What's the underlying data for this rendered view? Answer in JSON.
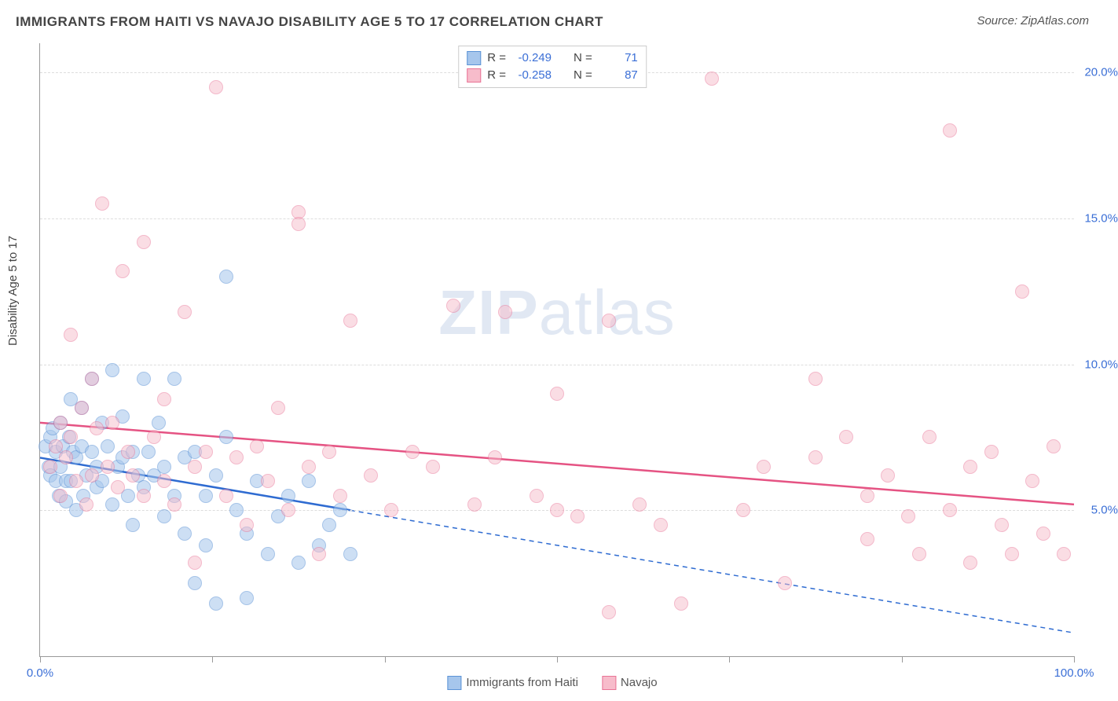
{
  "title": "IMMIGRANTS FROM HAITI VS NAVAJO DISABILITY AGE 5 TO 17 CORRELATION CHART",
  "source": "Source: ZipAtlas.com",
  "ylabel": "Disability Age 5 to 17",
  "watermark_bold": "ZIP",
  "watermark_rest": "atlas",
  "chart": {
    "type": "scatter",
    "background_color": "#ffffff",
    "grid_color": "#dddddd",
    "axis_color": "#999999",
    "xlim": [
      0,
      100
    ],
    "ylim": [
      0,
      21
    ],
    "xtick_positions": [
      0,
      16.67,
      33.33,
      50,
      66.67,
      83.33,
      100
    ],
    "xtick_labels": {
      "0": "0.0%",
      "100": "100.0%"
    },
    "ytick_positions": [
      5,
      10,
      15,
      20
    ],
    "ytick_labels": [
      "5.0%",
      "10.0%",
      "15.0%",
      "20.0%"
    ],
    "marker_radius": 9,
    "marker_border_width": 1.5,
    "series": [
      {
        "name": "Immigrants from Haiti",
        "fill_color": "#a6c6ec",
        "fill_opacity": 0.55,
        "border_color": "#5c93d6",
        "R": "-0.249",
        "N": "71",
        "trend": {
          "x1": 0,
          "y1": 6.8,
          "x2": 30,
          "y2": 5.0,
          "x2_ext": 100,
          "y2_ext": 0.8,
          "color": "#2e6bd1",
          "width": 2.5
        },
        "points": [
          [
            0.5,
            7.2
          ],
          [
            0.8,
            6.5
          ],
          [
            1,
            7.5
          ],
          [
            1,
            6.2
          ],
          [
            1.2,
            7.8
          ],
          [
            1.5,
            6.0
          ],
          [
            1.5,
            7.0
          ],
          [
            1.8,
            5.5
          ],
          [
            2,
            6.5
          ],
          [
            2,
            8.0
          ],
          [
            2.2,
            7.2
          ],
          [
            2.5,
            6.0
          ],
          [
            2.5,
            5.3
          ],
          [
            2.8,
            7.5
          ],
          [
            3,
            8.8
          ],
          [
            3,
            6.0
          ],
          [
            3.2,
            7.0
          ],
          [
            3.5,
            5.0
          ],
          [
            3.5,
            6.8
          ],
          [
            4,
            7.2
          ],
          [
            4,
            8.5
          ],
          [
            4.2,
            5.5
          ],
          [
            4.5,
            6.2
          ],
          [
            5,
            9.5
          ],
          [
            5,
            7.0
          ],
          [
            5.5,
            6.5
          ],
          [
            5.5,
            5.8
          ],
          [
            6,
            8.0
          ],
          [
            6,
            6.0
          ],
          [
            6.5,
            7.2
          ],
          [
            7,
            9.8
          ],
          [
            7,
            5.2
          ],
          [
            7.5,
            6.5
          ],
          [
            8,
            6.8
          ],
          [
            8,
            8.2
          ],
          [
            8.5,
            5.5
          ],
          [
            9,
            7.0
          ],
          [
            9,
            4.5
          ],
          [
            9.5,
            6.2
          ],
          [
            10,
            9.5
          ],
          [
            10,
            5.8
          ],
          [
            10.5,
            7.0
          ],
          [
            11,
            6.2
          ],
          [
            11.5,
            8.0
          ],
          [
            12,
            6.5
          ],
          [
            12,
            4.8
          ],
          [
            13,
            9.5
          ],
          [
            13,
            5.5
          ],
          [
            14,
            6.8
          ],
          [
            14,
            4.2
          ],
          [
            15,
            7.0
          ],
          [
            15,
            2.5
          ],
          [
            16,
            5.5
          ],
          [
            16,
            3.8
          ],
          [
            17,
            6.2
          ],
          [
            17,
            1.8
          ],
          [
            18,
            7.5
          ],
          [
            18,
            13.0
          ],
          [
            19,
            5.0
          ],
          [
            20,
            4.2
          ],
          [
            20,
            2.0
          ],
          [
            21,
            6.0
          ],
          [
            22,
            3.5
          ],
          [
            23,
            4.8
          ],
          [
            24,
            5.5
          ],
          [
            25,
            3.2
          ],
          [
            26,
            6.0
          ],
          [
            27,
            3.8
          ],
          [
            28,
            4.5
          ],
          [
            29,
            5.0
          ],
          [
            30,
            3.5
          ]
        ]
      },
      {
        "name": "Navajo",
        "fill_color": "#f7bccb",
        "fill_opacity": 0.5,
        "border_color": "#e97496",
        "R": "-0.258",
        "N": "87",
        "trend": {
          "x1": 0,
          "y1": 8.0,
          "x2": 100,
          "y2": 5.2,
          "color": "#e55383",
          "width": 2.5
        },
        "points": [
          [
            1,
            6.5
          ],
          [
            1.5,
            7.2
          ],
          [
            2,
            8.0
          ],
          [
            2,
            5.5
          ],
          [
            2.5,
            6.8
          ],
          [
            3,
            11.0
          ],
          [
            3,
            7.5
          ],
          [
            3.5,
            6.0
          ],
          [
            4,
            8.5
          ],
          [
            4.5,
            5.2
          ],
          [
            5,
            9.5
          ],
          [
            5,
            6.2
          ],
          [
            5.5,
            7.8
          ],
          [
            6,
            15.5
          ],
          [
            6.5,
            6.5
          ],
          [
            7,
            8.0
          ],
          [
            7.5,
            5.8
          ],
          [
            8,
            13.2
          ],
          [
            8.5,
            7.0
          ],
          [
            9,
            6.2
          ],
          [
            10,
            14.2
          ],
          [
            10,
            5.5
          ],
          [
            11,
            7.5
          ],
          [
            12,
            6.0
          ],
          [
            12,
            8.8
          ],
          [
            13,
            5.2
          ],
          [
            14,
            11.8
          ],
          [
            15,
            6.5
          ],
          [
            15,
            3.2
          ],
          [
            16,
            7.0
          ],
          [
            17,
            19.5
          ],
          [
            18,
            5.5
          ],
          [
            19,
            6.8
          ],
          [
            20,
            4.5
          ],
          [
            21,
            7.2
          ],
          [
            22,
            6.0
          ],
          [
            23,
            8.5
          ],
          [
            24,
            5.0
          ],
          [
            25,
            15.2
          ],
          [
            25,
            14.8
          ],
          [
            26,
            6.5
          ],
          [
            27,
            3.5
          ],
          [
            28,
            7.0
          ],
          [
            29,
            5.5
          ],
          [
            30,
            11.5
          ],
          [
            32,
            6.2
          ],
          [
            34,
            5.0
          ],
          [
            36,
            7.0
          ],
          [
            38,
            6.5
          ],
          [
            40,
            12.0
          ],
          [
            42,
            5.2
          ],
          [
            44,
            6.8
          ],
          [
            45,
            11.8
          ],
          [
            48,
            5.5
          ],
          [
            50,
            9.0
          ],
          [
            50,
            5.0
          ],
          [
            52,
            4.8
          ],
          [
            55,
            11.5
          ],
          [
            55,
            1.5
          ],
          [
            58,
            5.2
          ],
          [
            60,
            4.5
          ],
          [
            62,
            1.8
          ],
          [
            65,
            19.8
          ],
          [
            68,
            5.0
          ],
          [
            70,
            6.5
          ],
          [
            72,
            2.5
          ],
          [
            75,
            9.5
          ],
          [
            75,
            6.8
          ],
          [
            78,
            7.5
          ],
          [
            80,
            5.5
          ],
          [
            80,
            4.0
          ],
          [
            82,
            6.2
          ],
          [
            84,
            4.8
          ],
          [
            85,
            3.5
          ],
          [
            86,
            7.5
          ],
          [
            88,
            18.0
          ],
          [
            88,
            5.0
          ],
          [
            90,
            6.5
          ],
          [
            90,
            3.2
          ],
          [
            92,
            7.0
          ],
          [
            93,
            4.5
          ],
          [
            94,
            3.5
          ],
          [
            95,
            12.5
          ],
          [
            96,
            6.0
          ],
          [
            97,
            4.2
          ],
          [
            98,
            7.2
          ],
          [
            99,
            3.5
          ]
        ]
      }
    ]
  },
  "legend_top_labels": {
    "R": "R =",
    "N": "N ="
  },
  "legend_bottom": [
    {
      "label": "Immigrants from Haiti",
      "fill": "#a6c6ec",
      "border": "#5c93d6"
    },
    {
      "label": "Navajo",
      "fill": "#f7bccb",
      "border": "#e97496"
    }
  ]
}
